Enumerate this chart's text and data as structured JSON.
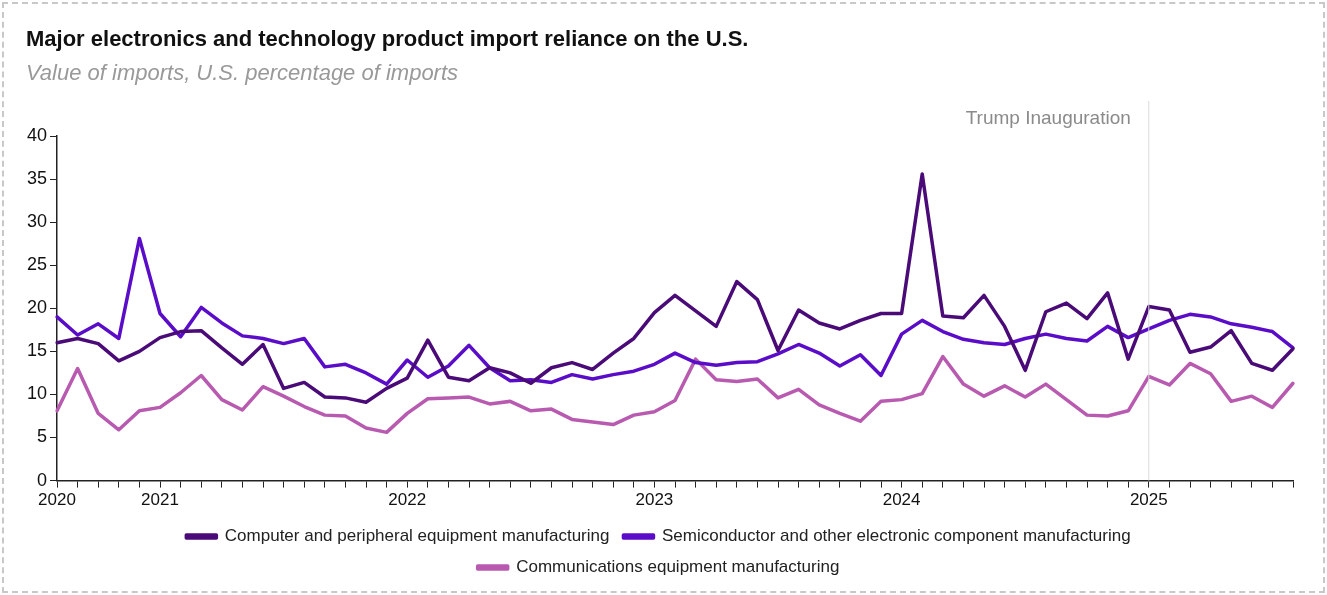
{
  "chart_data": {
    "type": "line",
    "title": "Major electronics and technology product import reliance on the U.S.",
    "subtitle": "Value of imports, U.S. percentage of imports",
    "categories": [
      "2020",
      null,
      null,
      null,
      null,
      "2021",
      null,
      null,
      null,
      null,
      null,
      null,
      null,
      null,
      null,
      null,
      null,
      "2022",
      null,
      null,
      null,
      null,
      null,
      null,
      null,
      null,
      null,
      null,
      null,
      "2023",
      null,
      null,
      null,
      null,
      null,
      null,
      null,
      null,
      null,
      null,
      null,
      "2024",
      null,
      null,
      null,
      null,
      null,
      null,
      null,
      null,
      null,
      null,
      null,
      "2025",
      null,
      null,
      null,
      null,
      null,
      null,
      null
    ],
    "series": [
      {
        "name": "Computer and peripheral equipment manufacturing",
        "color": "#4a0a77",
        "values": [
          16,
          16.5,
          15.9,
          13.9,
          15,
          16.6,
          17.3,
          17.4,
          15.4,
          13.5,
          15.8,
          10.7,
          11.4,
          9.7,
          9.6,
          9.1,
          10.7,
          11.9,
          16.3,
          12,
          11.6,
          13.1,
          12.5,
          11.3,
          13.1,
          13.7,
          12.9,
          14.8,
          16.5,
          19.5,
          21.5,
          19.7,
          17.9,
          23.1,
          21,
          15.1,
          19.8,
          18.3,
          17.6,
          18.6,
          19.4,
          19.4,
          35.6,
          19.1,
          18.9,
          21.5,
          17.9,
          12.8,
          19.6,
          20.6,
          18.8,
          21.8,
          14.1,
          20.2,
          19.8,
          14.9,
          15.5,
          17.4,
          13.6,
          12.8,
          15.3
        ]
      },
      {
        "name": "Semiconductor and other electronic component manufacturing",
        "color": "#5a0cc8",
        "values": [
          19,
          16.9,
          18.2,
          16.5,
          28.1,
          19.4,
          16.7,
          20.1,
          18.3,
          16.8,
          16.5,
          15.9,
          16.5,
          13.2,
          13.5,
          12.5,
          11.2,
          14,
          12,
          13.3,
          15.7,
          13.1,
          11.6,
          11.7,
          11.4,
          12.3,
          11.8,
          12.3,
          12.7,
          13.5,
          14.8,
          13.7,
          13.4,
          13.7,
          13.8,
          14.7,
          15.8,
          14.8,
          13.3,
          14.6,
          12.2,
          17,
          18.6,
          17.3,
          16.4,
          16,
          15.8,
          16.5,
          17,
          16.5,
          16.2,
          17.9,
          16.6,
          17.6,
          18.6,
          19.3,
          19,
          18.2,
          17.8,
          17.3,
          15.4
        ]
      },
      {
        "name": "Communications equipment manufacturing",
        "color": "#b85ab0",
        "values": [
          8.1,
          13,
          7.8,
          5.9,
          8.1,
          8.5,
          10.2,
          12.2,
          9.4,
          8.2,
          10.9,
          9.8,
          8.6,
          7.6,
          7.5,
          6.1,
          5.6,
          7.8,
          9.5,
          9.6,
          9.7,
          8.9,
          9.2,
          8.1,
          8.3,
          7.1,
          6.8,
          6.5,
          7.6,
          8,
          9.3,
          14.1,
          11.7,
          11.5,
          11.8,
          9.6,
          10.6,
          8.8,
          7.8,
          6.9,
          9.2,
          9.4,
          10.1,
          14.4,
          11.2,
          9.8,
          11,
          9.7,
          11.2,
          9.4,
          7.6,
          7.5,
          8.1,
          12.1,
          11.1,
          13.6,
          12.4,
          9.2,
          9.8,
          8.5,
          11.3
        ]
      }
    ],
    "ylim": [
      0,
      40
    ],
    "yticks": [
      0,
      5,
      10,
      15,
      20,
      25,
      30,
      35,
      40
    ],
    "grid": false,
    "legend": "bottom",
    "marker": "none",
    "line_style": "solid",
    "ref_lines": [
      {
        "axis": "x",
        "value": "2025",
        "label": "Trump Inauguration",
        "color": "#d9d9d9"
      }
    ]
  }
}
